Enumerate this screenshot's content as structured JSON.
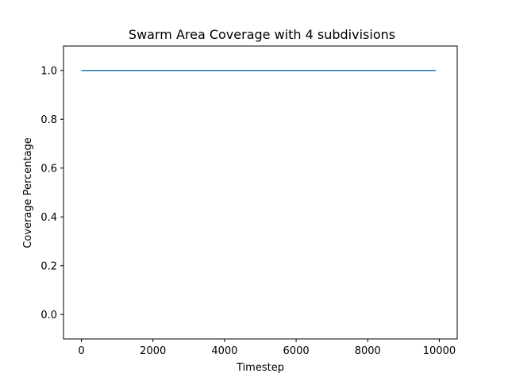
{
  "chart_data": {
    "type": "line",
    "title": "Swarm Area Coverage with 4 subdivisions",
    "xlabel": "Timestep",
    "ylabel": "Coverage Percentage",
    "xlim": [
      -500,
      10500
    ],
    "ylim": [
      -0.1,
      1.1
    ],
    "xticks": [
      0,
      2000,
      4000,
      6000,
      8000,
      10000
    ],
    "xtick_labels": [
      "0",
      "2000",
      "4000",
      "6000",
      "8000",
      "10000"
    ],
    "yticks": [
      0.0,
      0.2,
      0.4,
      0.6,
      0.8,
      1.0
    ],
    "ytick_labels": [
      "0.0",
      "0.2",
      "0.4",
      "0.6",
      "0.8",
      "1.0"
    ],
    "grid": false,
    "series": [
      {
        "color": "#1f77b4",
        "x": [
          0,
          9900
        ],
        "y": [
          1.0,
          1.0
        ]
      }
    ]
  }
}
